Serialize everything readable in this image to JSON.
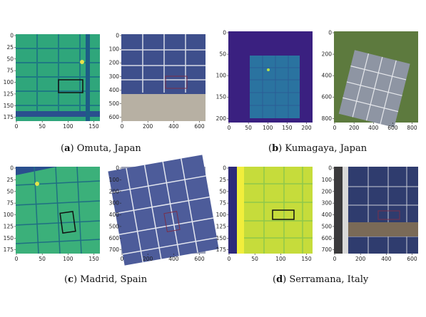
{
  "panels": [
    {
      "label": "a",
      "place": "Omuta, Japan",
      "thermal": {
        "xticks": [
          "0",
          "50",
          "100",
          "150"
        ],
        "yticks": [
          "0",
          "25",
          "50",
          "75",
          "100",
          "125",
          "150",
          "175"
        ],
        "palette": "viridis",
        "colors": {
          "base": "#2fa67b",
          "cell": "#4fbf6c",
          "grid": "#1e7a83",
          "hot": "#e8e14a"
        }
      },
      "rgb": {
        "xticks": [
          "0",
          "200",
          "400",
          "600"
        ],
        "yticks": [
          "0",
          "100",
          "200",
          "300",
          "400",
          "500",
          "600"
        ],
        "colors": {
          "panel": "#3e4f8c",
          "frame": "#d7dbe6",
          "ground": "#b7b0a3"
        }
      }
    },
    {
      "label": "b",
      "place": "Kumagaya, Japan",
      "thermal": {
        "xticks": [
          "0",
          "50",
          "100",
          "150",
          "200"
        ],
        "yticks": [
          "0",
          "50",
          "100",
          "150",
          "200"
        ],
        "palette": "viridis",
        "colors": {
          "base": "#3a2080",
          "cell": "#2a73a0",
          "grid": "#2b5d96",
          "hot": "#b8e04a"
        }
      },
      "rgb": {
        "xticks": [
          "0",
          "200",
          "400",
          "600",
          "800"
        ],
        "yticks": [
          "0",
          "200",
          "400",
          "600",
          "800"
        ],
        "colors": {
          "panel": "#8e95a3",
          "frame": "#e6e8ec",
          "ground": "#5d7a3e"
        }
      }
    },
    {
      "label": "c",
      "place": "Madrid, Spain",
      "thermal": {
        "xticks": [
          "0",
          "50",
          "100",
          "150"
        ],
        "yticks": [
          "0",
          "25",
          "50",
          "75",
          "100",
          "125",
          "150",
          "175"
        ],
        "palette": "viridis",
        "colors": {
          "base": "#3bb07a",
          "cell": "#4cbd6f",
          "grid": "#1f6f83",
          "hot": "#e2e34a"
        }
      },
      "rgb": {
        "xticks": [
          "0",
          "200",
          "400",
          "600"
        ],
        "yticks": [
          "0",
          "100",
          "200",
          "300",
          "400",
          "500",
          "600",
          "700"
        ],
        "colors": {
          "panel": "#4d5c9a",
          "frame": "#e3e6ef",
          "ground": "#9aa0b6"
        }
      }
    },
    {
      "label": "d",
      "place": "Serramana, Italy",
      "thermal": {
        "xticks": [
          "0",
          "50",
          "100",
          "150"
        ],
        "yticks": [
          "0",
          "25",
          "50",
          "75",
          "100",
          "125",
          "150",
          "175"
        ],
        "palette": "viridis",
        "colors": {
          "base": "#c6dc3b",
          "cell": "#dfe33a",
          "grid": "#8fc84a",
          "hot": "#f5ee4a",
          "edge": "#2e2a7a"
        }
      },
      "rgb": {
        "xticks": [
          "0",
          "200",
          "400",
          "600"
        ],
        "yticks": [
          "0",
          "100",
          "200",
          "300",
          "400",
          "500",
          "600",
          "700"
        ],
        "colors": {
          "panel": "#2f3c6e",
          "frame": "#c9ccd6",
          "ground": "#7a6a57"
        }
      }
    }
  ]
}
